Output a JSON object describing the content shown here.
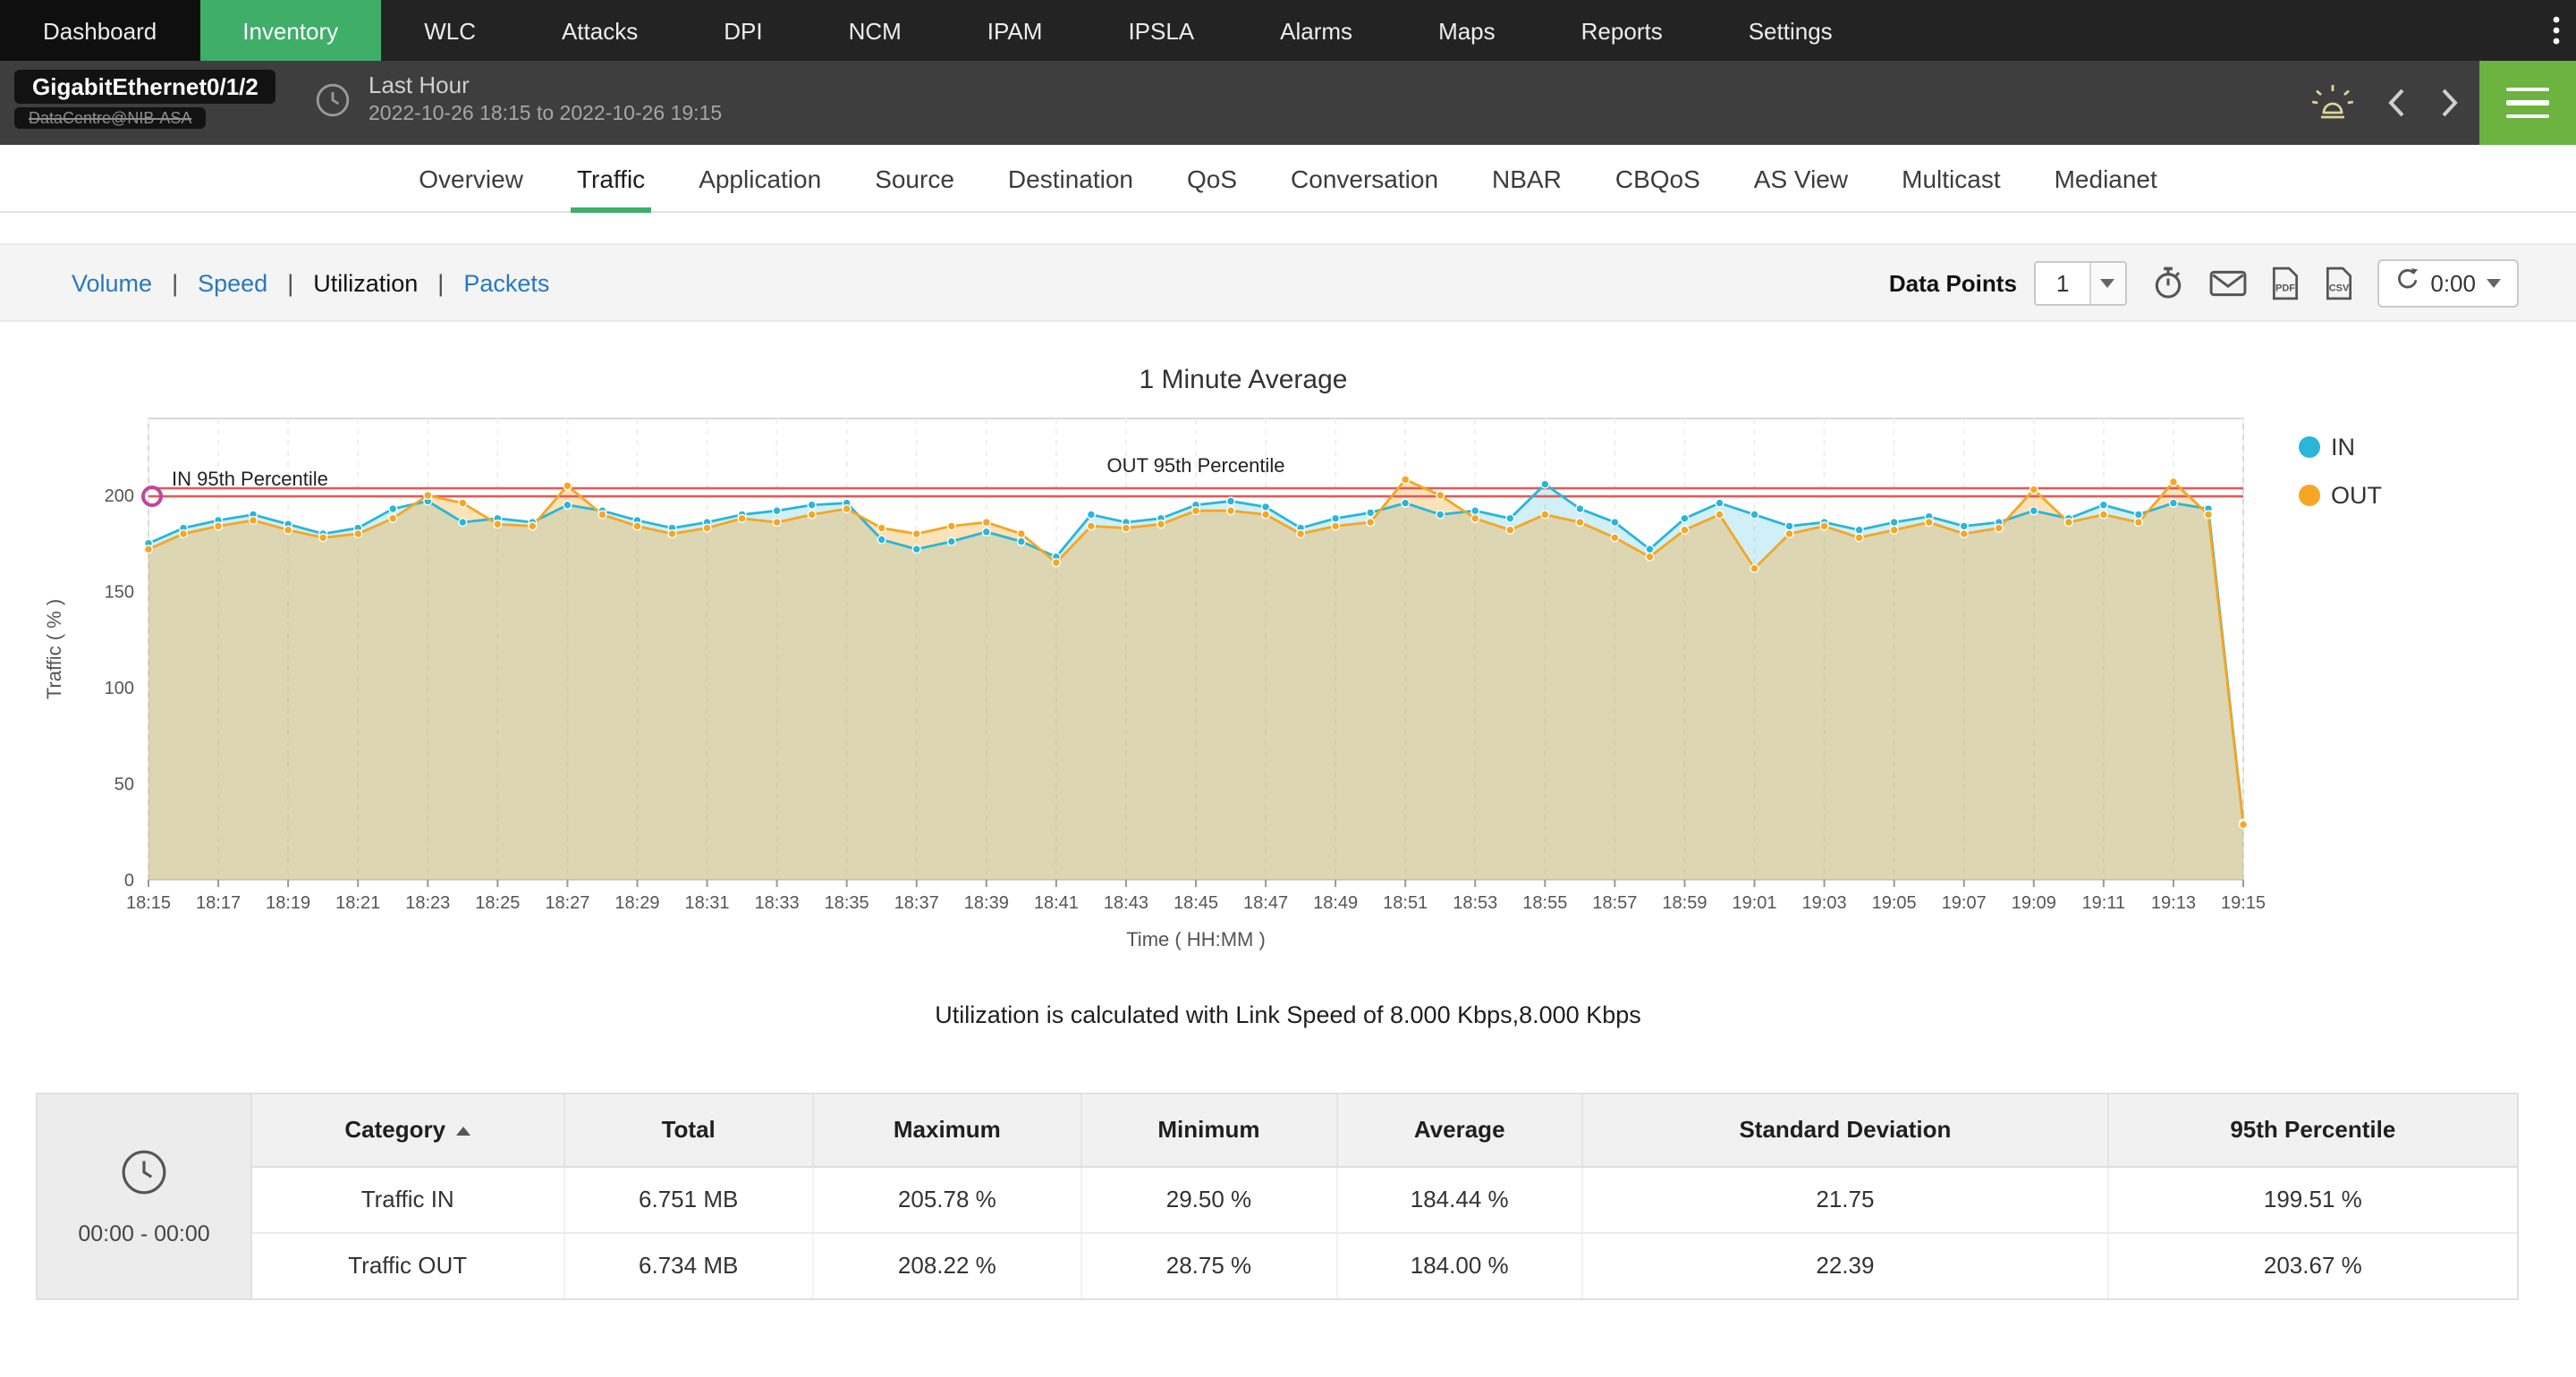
{
  "nav": {
    "items": [
      {
        "label": "Dashboard",
        "active": false
      },
      {
        "label": "Inventory",
        "active": true
      },
      {
        "label": "WLC",
        "active": false
      },
      {
        "label": "Attacks",
        "active": false
      },
      {
        "label": "DPI",
        "active": false
      },
      {
        "label": "NCM",
        "active": false
      },
      {
        "label": "IPAM",
        "active": false
      },
      {
        "label": "IPSLA",
        "active": false
      },
      {
        "label": "Alarms",
        "active": false
      },
      {
        "label": "Maps",
        "active": false
      },
      {
        "label": "Reports",
        "active": false
      },
      {
        "label": "Settings",
        "active": false
      }
    ]
  },
  "header": {
    "title": "GigabitEthernet0/1/2",
    "subtitle": "DataCentre@NIB-ASA",
    "period_label": "Last Hour",
    "period_range": "2022-10-26 18:15 to 2022-10-26 19:15"
  },
  "tabs": [
    "Overview",
    "Traffic",
    "Application",
    "Source",
    "Destination",
    "QoS",
    "Conversation",
    "NBAR",
    "CBQoS",
    "AS View",
    "Multicast",
    "Medianet"
  ],
  "active_tab": "Traffic",
  "metric_links": [
    "Volume",
    "Speed",
    "Utilization",
    "Packets"
  ],
  "active_metric": "Utilization",
  "toolbar": {
    "data_points_label": "Data Points",
    "data_points_value": "1",
    "refresh_value": "0:00"
  },
  "icons": [
    "kebab-menu-icon",
    "clock-icon",
    "alarm-icon",
    "chevron-left-icon",
    "chevron-right-icon",
    "menu-icon",
    "timer-icon",
    "email-icon",
    "pdf-export-icon",
    "csv-export-icon",
    "refresh-icon",
    "sort-asc-icon"
  ],
  "colors": {
    "nav_green": "#3fae68",
    "link_blue": "#2878be",
    "in_series": "#29b6d8",
    "out_series": "#f5a623",
    "percentile_red": "#e05b5b",
    "annotation_ring": "#c2459a"
  },
  "chart_data": {
    "type": "line",
    "title": "1 Minute Average",
    "xlabel": "Time ( HH:MM )",
    "ylabel": "Traffic ( % )",
    "ylim": [
      0,
      240
    ],
    "yticks": [
      0,
      50,
      100,
      150,
      200
    ],
    "x_tick_every": 2,
    "grid": "vertical-dashed",
    "legend": [
      "IN",
      "OUT"
    ],
    "legend_position": "right",
    "x": [
      "18:15",
      "18:16",
      "18:17",
      "18:18",
      "18:19",
      "18:20",
      "18:21",
      "18:22",
      "18:23",
      "18:24",
      "18:25",
      "18:26",
      "18:27",
      "18:28",
      "18:29",
      "18:30",
      "18:31",
      "18:32",
      "18:33",
      "18:34",
      "18:35",
      "18:36",
      "18:37",
      "18:38",
      "18:39",
      "18:40",
      "18:41",
      "18:42",
      "18:43",
      "18:44",
      "18:45",
      "18:46",
      "18:47",
      "18:48",
      "18:49",
      "18:50",
      "18:51",
      "18:52",
      "18:53",
      "18:54",
      "18:55",
      "18:56",
      "18:57",
      "18:58",
      "18:59",
      "19:00",
      "19:01",
      "19:02",
      "19:03",
      "19:04",
      "19:05",
      "19:06",
      "19:07",
      "19:08",
      "19:09",
      "19:10",
      "19:11",
      "19:12",
      "19:13",
      "19:14",
      "19:15"
    ],
    "series": [
      {
        "name": "IN",
        "color": "#29b6d8",
        "fill": "rgba(41,182,216,0.22)",
        "values": [
          175,
          183,
          187,
          190,
          185,
          180,
          183,
          193,
          197,
          186,
          188,
          186,
          195,
          192,
          187,
          183,
          186,
          190,
          192,
          195,
          196,
          177,
          172,
          176,
          181,
          176,
          168,
          190,
          186,
          188,
          195,
          197,
          194,
          183,
          188,
          191,
          196,
          190,
          192,
          188,
          205.78,
          193,
          186,
          172,
          188,
          196,
          190,
          184,
          186,
          182,
          186,
          189,
          184,
          186,
          192,
          188,
          195,
          190,
          196,
          193,
          29.5
        ]
      },
      {
        "name": "OUT",
        "color": "#f5a623",
        "fill": "rgba(245,166,35,0.32)",
        "values": [
          172,
          180,
          184,
          187,
          182,
          178,
          180,
          188,
          200,
          196,
          185,
          184,
          205,
          190,
          184,
          180,
          183,
          188,
          186,
          190,
          193,
          183,
          180,
          184,
          186,
          180,
          165,
          184,
          183,
          185,
          192,
          192,
          190,
          180,
          184,
          186,
          208.22,
          200,
          188,
          182,
          190,
          186,
          178,
          168,
          182,
          190,
          162,
          180,
          184,
          178,
          182,
          186,
          180,
          183,
          203,
          186,
          190,
          186,
          207,
          190,
          28.75
        ]
      }
    ],
    "percentile_lines": [
      {
        "label": "IN 95th Percentile",
        "value": 199.51,
        "color": "#e05b5b"
      },
      {
        "label": "OUT 95th Percentile",
        "value": 203.67,
        "color": "#e05b5b"
      }
    ]
  },
  "caption": "Utilization is calculated with Link Speed of 8.000 Kbps,8.000 Kbps",
  "summary_table": {
    "time_range": "00:00 - 00:00",
    "headers": [
      "Category",
      "Total",
      "Maximum",
      "Minimum",
      "Average",
      "Standard Deviation",
      "95th Percentile"
    ],
    "rows": [
      [
        "Traffic IN",
        "6.751 MB",
        "205.78 %",
        "29.50 %",
        "184.44 %",
        "21.75",
        "199.51 %"
      ],
      [
        "Traffic OUT",
        "6.734 MB",
        "208.22 %",
        "28.75 %",
        "184.00 %",
        "22.39",
        "203.67 %"
      ]
    ]
  }
}
